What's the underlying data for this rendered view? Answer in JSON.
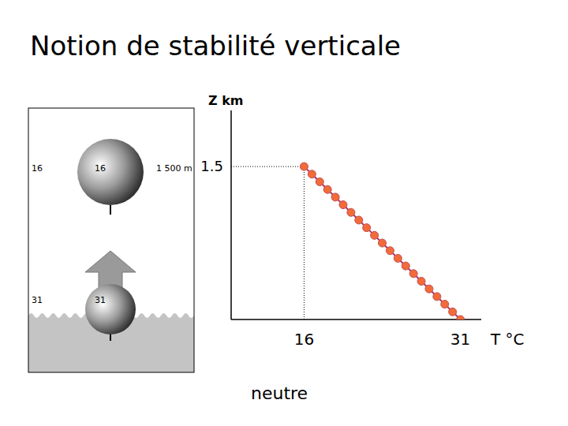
{
  "chart_data": {
    "type": "line",
    "title": "Notion de stabilité verticale",
    "x_label": "T °C",
    "y_label": "Z km",
    "annotation": "neutre",
    "x": [
      16,
      16.75,
      17.5,
      18.25,
      19,
      19.75,
      20.5,
      21.25,
      22,
      22.75,
      23.5,
      24.25,
      25,
      25.75,
      26.5,
      27.25,
      28,
      28.75,
      29.5,
      30.25,
      31
    ],
    "values": [
      1.5,
      1.425,
      1.35,
      1.275,
      1.2,
      1.125,
      1.05,
      0.975,
      0.9,
      0.825,
      0.75,
      0.675,
      0.6,
      0.525,
      0.45,
      0.375,
      0.3,
      0.225,
      0.15,
      0.075,
      0
    ],
    "color": "#b0306a",
    "marker": "circle",
    "xlim": [
      9,
      33
    ],
    "ylim": [
      0,
      2.05
    ],
    "xticks": [
      16,
      31
    ],
    "yticks": [
      1.5
    ]
  },
  "illustration": {
    "top_temperature": 16,
    "bottom_temperature": 31,
    "altitude_label": "1 500 m"
  }
}
